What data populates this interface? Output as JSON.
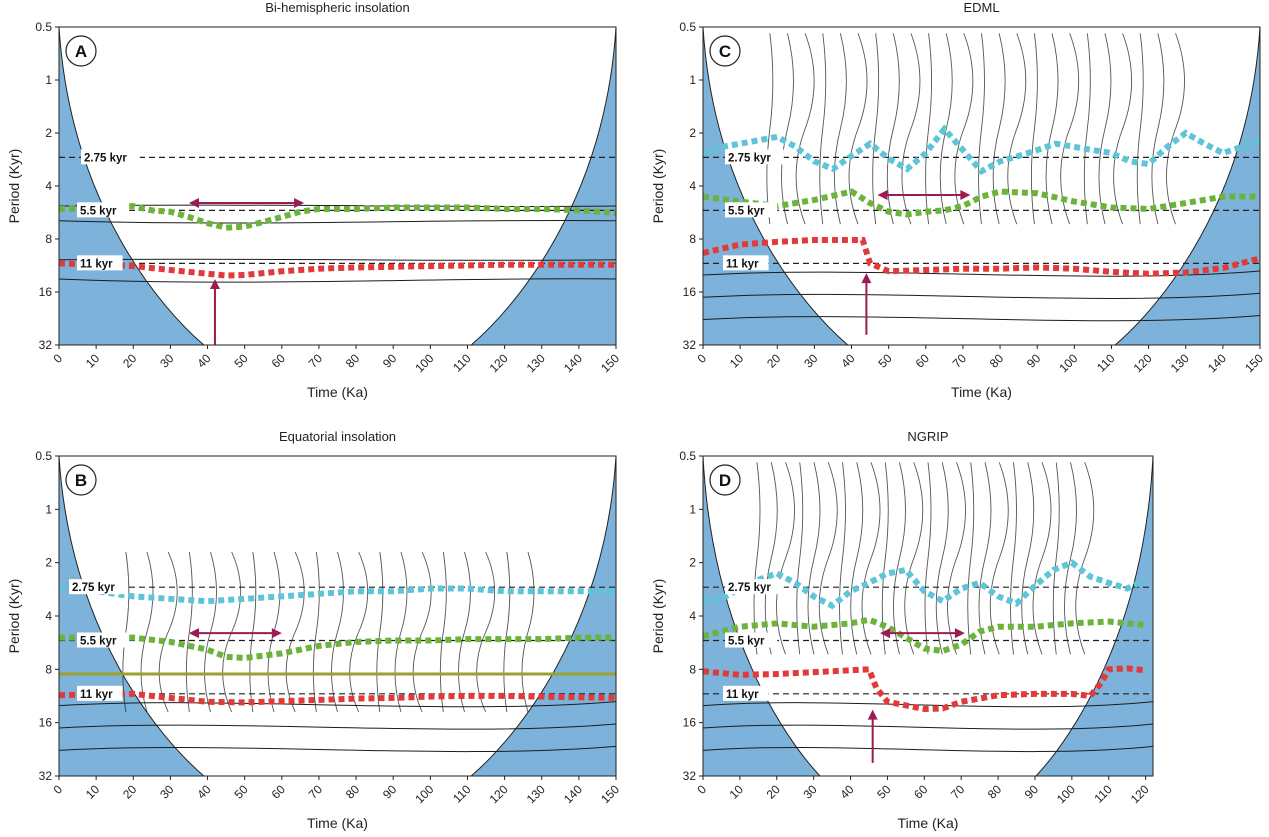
{
  "chart_data": [
    {
      "type": "heatmap",
      "panel_letter": "A",
      "title": "Bi-hemispheric insolation",
      "xlabel": "Time (Ka)",
      "ylabel": "Period (Kyr)",
      "xlim": [
        0,
        150
      ],
      "ylim": [
        0.5,
        32
      ],
      "y_scale": "log2",
      "x_ticks": [
        0,
        10,
        20,
        30,
        40,
        50,
        60,
        70,
        80,
        90,
        100,
        110,
        120,
        130,
        140,
        150
      ],
      "y_ticks": [
        0.5,
        1,
        2,
        4,
        8,
        16,
        32
      ],
      "reference_lines": [
        {
          "label": "2.75 kyr",
          "period": 2.75
        },
        {
          "label": "5.5 kyr",
          "period": 5.5
        },
        {
          "label": "11 kyr",
          "period": 11
        }
      ],
      "series": [
        {
          "color": "#6bb33a",
          "x": [
            0,
            20,
            25,
            30,
            35,
            40,
            45,
            50,
            55,
            60,
            65,
            70,
            80,
            90,
            100,
            110,
            120,
            130,
            140,
            150
          ],
          "y": [
            5.4,
            5.2,
            5.5,
            5.6,
            6.0,
            6.5,
            6.9,
            6.8,
            6.4,
            6.0,
            5.6,
            5.4,
            5.4,
            5.3,
            5.3,
            5.3,
            5.4,
            5.4,
            5.5,
            5.7
          ]
        },
        {
          "color": "#e23a3a",
          "x": [
            0,
            20,
            30,
            40,
            45,
            50,
            60,
            70,
            80,
            90,
            100,
            110,
            120,
            130,
            140,
            150
          ],
          "y": [
            11.0,
            11.4,
            12.0,
            12.6,
            12.9,
            12.8,
            12.2,
            11.8,
            11.6,
            11.5,
            11.4,
            11.3,
            11.2,
            11.2,
            11.2,
            11.2
          ]
        }
      ],
      "arrows": [
        {
          "orientation": "horizontal",
          "x_range": [
            35,
            66
          ],
          "y": 5
        }
      ],
      "markers": [
        {
          "label": "vertical-arrow",
          "x": 42,
          "y_range": [
            13.5,
            32
          ]
        }
      ]
    },
    {
      "type": "heatmap",
      "panel_letter": "B",
      "title": "Equatorial insolation",
      "xlabel": "Time (Ka)",
      "ylabel": "Period (Kyr)",
      "xlim": [
        0,
        150
      ],
      "ylim": [
        0.5,
        32
      ],
      "y_scale": "log2",
      "x_ticks": [
        0,
        10,
        20,
        30,
        40,
        50,
        60,
        70,
        80,
        90,
        100,
        110,
        120,
        130,
        140,
        150
      ],
      "y_ticks": [
        0.5,
        1,
        2,
        4,
        8,
        16,
        32
      ],
      "reference_lines": [
        {
          "label": "2.75 kyr",
          "period": 2.75
        },
        {
          "label": "5.5 kyr",
          "period": 5.5
        },
        {
          "label": "11 kyr",
          "period": 11
        }
      ],
      "series": [
        {
          "color": "#5ec4d8",
          "x": [
            0,
            10,
            20,
            30,
            40,
            50,
            60,
            70,
            80,
            90,
            100,
            110,
            120,
            130,
            140,
            150
          ],
          "y": [
            2.75,
            2.9,
            3.1,
            3.2,
            3.3,
            3.2,
            3.1,
            3.0,
            2.9,
            2.9,
            2.8,
            2.8,
            2.9,
            2.9,
            2.9,
            2.9
          ]
        },
        {
          "color": "#6bb33a",
          "x": [
            0,
            20,
            30,
            40,
            45,
            50,
            60,
            70,
            80,
            90,
            100,
            110,
            120,
            130,
            140,
            150
          ],
          "y": [
            5.3,
            5.3,
            5.6,
            6.2,
            6.8,
            6.9,
            6.5,
            5.9,
            5.6,
            5.5,
            5.5,
            5.4,
            5.4,
            5.4,
            5.3,
            5.3
          ]
        },
        {
          "color": "#e23a3a",
          "x": [
            0,
            20,
            30,
            40,
            50,
            60,
            70,
            80,
            90,
            100,
            110,
            120,
            130,
            140,
            150
          ],
          "y": [
            11.2,
            11.0,
            11.6,
            12.2,
            12.3,
            12.1,
            11.9,
            11.7,
            11.6,
            11.4,
            11.3,
            11.3,
            11.4,
            11.5,
            11.6
          ]
        }
      ],
      "arrows": [
        {
          "orientation": "horizontal",
          "x_range": [
            35,
            60
          ],
          "y": 5
        }
      ],
      "markers": [
        {
          "label": "olive-line",
          "period": 8.5
        }
      ]
    },
    {
      "type": "heatmap",
      "panel_letter": "C",
      "title": "EDML",
      "xlabel": "Time (Ka)",
      "ylabel": "Period (Kyr)",
      "xlim": [
        0,
        150
      ],
      "ylim": [
        0.5,
        32
      ],
      "y_scale": "log2",
      "x_ticks": [
        0,
        10,
        20,
        30,
        40,
        50,
        60,
        70,
        80,
        90,
        100,
        110,
        120,
        130,
        140,
        150
      ],
      "y_ticks": [
        0.5,
        1,
        2,
        4,
        8,
        16,
        32
      ],
      "reference_lines": [
        {
          "label": "2.75 kyr",
          "period": 2.75
        },
        {
          "label": "5.5 kyr",
          "period": 5.5
        },
        {
          "label": "11 kyr",
          "period": 11
        }
      ],
      "series": [
        {
          "color": "#5ec4d8",
          "x": [
            0,
            5,
            10,
            15,
            20,
            25,
            30,
            35,
            40,
            45,
            50,
            55,
            60,
            65,
            70,
            75,
            80,
            85,
            90,
            95,
            100,
            105,
            110,
            115,
            120,
            125,
            130,
            135,
            140,
            145,
            150
          ],
          "y": [
            2.6,
            2.4,
            2.3,
            2.2,
            2.1,
            2.4,
            2.9,
            3.2,
            2.7,
            2.3,
            2.8,
            3.2,
            2.6,
            1.9,
            2.5,
            3.3,
            2.9,
            2.7,
            2.5,
            2.3,
            2.4,
            2.5,
            2.6,
            2.9,
            3.0,
            2.4,
            2.0,
            2.3,
            2.6,
            2.4,
            2.2
          ]
        },
        {
          "color": "#6bb33a",
          "x": [
            0,
            10,
            20,
            30,
            40,
            45,
            50,
            55,
            60,
            65,
            70,
            75,
            80,
            90,
            100,
            110,
            120,
            130,
            140,
            150
          ],
          "y": [
            4.6,
            4.9,
            5.2,
            4.8,
            4.3,
            5.0,
            5.6,
            5.8,
            5.6,
            5.5,
            5.2,
            4.6,
            4.3,
            4.4,
            4.9,
            5.3,
            5.4,
            5.0,
            4.6,
            4.6
          ]
        },
        {
          "color": "#e23a3a",
          "x": [
            0,
            10,
            20,
            30,
            40,
            43,
            45,
            50,
            60,
            70,
            80,
            90,
            100,
            110,
            120,
            130,
            140,
            150
          ],
          "y": [
            9.6,
            8.6,
            8.3,
            8.1,
            8.1,
            8.1,
            11.0,
            12.2,
            12.0,
            11.8,
            11.8,
            11.6,
            11.8,
            12.3,
            12.6,
            12.4,
            11.7,
            10.3
          ]
        }
      ],
      "arrows": [
        {
          "orientation": "horizontal",
          "x_range": [
            47,
            72
          ],
          "y": 4.5
        }
      ],
      "markers": [
        {
          "label": "vertical-arrow",
          "x": 44,
          "y_range": [
            12.5,
            28
          ]
        }
      ]
    },
    {
      "type": "heatmap",
      "panel_letter": "D",
      "title": "NGRIP",
      "xlabel": "Time (Ka)",
      "ylabel": "Period (Kyr)",
      "xlim": [
        0,
        122
      ],
      "ylim": [
        0.5,
        32
      ],
      "y_scale": "log2",
      "x_ticks": [
        0,
        10,
        20,
        30,
        40,
        50,
        60,
        70,
        80,
        90,
        100,
        110,
        120
      ],
      "y_ticks": [
        0.5,
        1,
        2,
        4,
        8,
        16,
        32
      ],
      "reference_lines": [
        {
          "label": "2.75 kyr",
          "period": 2.75
        },
        {
          "label": "5.5 kyr",
          "period": 5.5
        },
        {
          "label": "11 kyr",
          "period": 11
        }
      ],
      "series": [
        {
          "color": "#5ec4d8",
          "x": [
            0,
            5,
            10,
            15,
            20,
            25,
            30,
            35,
            40,
            45,
            50,
            55,
            60,
            65,
            70,
            75,
            80,
            85,
            90,
            95,
            100,
            105,
            110,
            115,
            120
          ],
          "y": [
            3.3,
            3.2,
            2.8,
            2.5,
            2.3,
            2.6,
            3.1,
            3.5,
            2.9,
            2.6,
            2.3,
            2.2,
            2.9,
            3.3,
            2.8,
            2.6,
            3.1,
            3.4,
            2.7,
            2.2,
            2.0,
            2.4,
            2.6,
            2.8,
            2.5
          ]
        },
        {
          "color": "#6bb33a",
          "x": [
            0,
            10,
            20,
            30,
            40,
            45,
            50,
            55,
            60,
            65,
            70,
            75,
            80,
            90,
            100,
            110,
            120
          ],
          "y": [
            5.2,
            4.6,
            4.4,
            4.6,
            4.4,
            4.2,
            4.6,
            5.3,
            6.1,
            6.3,
            5.8,
            4.9,
            4.6,
            4.6,
            4.4,
            4.3,
            4.5
          ]
        },
        {
          "color": "#e23a3a",
          "x": [
            0,
            10,
            20,
            30,
            40,
            45,
            47,
            50,
            60,
            65,
            70,
            80,
            90,
            100,
            105,
            108,
            110,
            115,
            120
          ],
          "y": [
            8.2,
            8.6,
            8.5,
            8.3,
            8.1,
            8.0,
            10.2,
            12.2,
            13.4,
            13.3,
            12.2,
            11.2,
            11.0,
            11.0,
            11.3,
            9.5,
            8.0,
            7.9,
            8.1
          ]
        }
      ],
      "arrows": [
        {
          "orientation": "horizontal",
          "x_range": [
            48,
            71
          ],
          "y": 5
        }
      ],
      "markers": [
        {
          "label": "vertical-arrow",
          "x": 46,
          "y_range": [
            13.5,
            27
          ]
        }
      ]
    }
  ],
  "style": {
    "coi_color": "#7db3da",
    "cyan": "#5ec4d8",
    "green": "#6bb33a",
    "red": "#e23a3a",
    "arrow_color": "#9c1b52",
    "olive": "#9aa12c"
  }
}
